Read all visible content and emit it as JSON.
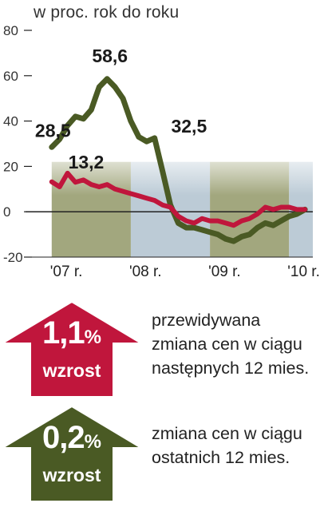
{
  "subtitle": "w proc. rok do roku",
  "colors": {
    "red": "#c0163c",
    "green": "#4a5a24",
    "band_green": "#a2a77e",
    "band_blue": "#bccbd6",
    "axis": "#222222"
  },
  "chart_data": {
    "type": "line",
    "subtitle": "w proc. rok do roku",
    "ylim": [
      -20,
      80
    ],
    "yticks": [
      -20,
      0,
      20,
      40,
      60,
      80
    ],
    "xlim": [
      2006.75,
      2010.3
    ],
    "xticks": [
      {
        "x": 2007.0,
        "label": "'07 r."
      },
      {
        "x": 2008.0,
        "label": "'08 r."
      },
      {
        "x": 2009.0,
        "label": "'09 r."
      },
      {
        "x": 2010.0,
        "label": "'10 r."
      }
    ],
    "bands": [
      {
        "from": 2007.0,
        "to": 2008.0,
        "color": "green"
      },
      {
        "from": 2008.0,
        "to": 2009.0,
        "color": "blue"
      },
      {
        "from": 2009.0,
        "to": 2010.0,
        "color": "green"
      },
      {
        "from": 2010.0,
        "to": 2010.3,
        "color": "blue"
      }
    ],
    "series": [
      {
        "key": "green",
        "x": [
          2007.0,
          2007.1,
          2007.2,
          2007.3,
          2007.4,
          2007.5,
          2007.55,
          2007.6,
          2007.7,
          2007.8,
          2007.9,
          2008.0,
          2008.1,
          2008.2,
          2008.3,
          2008.4,
          2008.5,
          2008.6,
          2008.7,
          2008.8,
          2008.9,
          2009.0,
          2009.1,
          2009.2,
          2009.3,
          2009.4,
          2009.5,
          2009.6,
          2009.7,
          2009.8,
          2009.9,
          2010.0,
          2010.1,
          2010.2
        ],
        "values": [
          28.5,
          32,
          38,
          42,
          41,
          45,
          50,
          55,
          58.6,
          55,
          50,
          40,
          33,
          31,
          32.5,
          18,
          3,
          -5,
          -7,
          -7,
          -8,
          -9,
          -10,
          -12,
          -13,
          -11,
          -10,
          -7,
          -5,
          -6,
          -4,
          -2,
          -1,
          1
        ]
      },
      {
        "key": "red",
        "x": [
          2007.0,
          2007.1,
          2007.2,
          2007.3,
          2007.4,
          2007.5,
          2007.6,
          2007.7,
          2007.8,
          2007.9,
          2008.0,
          2008.1,
          2008.2,
          2008.3,
          2008.4,
          2008.5,
          2008.6,
          2008.7,
          2008.8,
          2008.9,
          2009.0,
          2009.1,
          2009.2,
          2009.3,
          2009.4,
          2009.5,
          2009.6,
          2009.7,
          2009.8,
          2009.9,
          2010.0,
          2010.1,
          2010.2
        ],
        "values": [
          13.2,
          11,
          17,
          13,
          14,
          12,
          11,
          12,
          10,
          9,
          8,
          7,
          6,
          5,
          3,
          2,
          -2,
          -4,
          -5,
          -3,
          -4,
          -4,
          -5,
          -6,
          -4,
          -3,
          -1,
          2,
          1,
          2,
          2,
          1,
          1
        ]
      }
    ],
    "annotations": [
      {
        "text": "28,5",
        "x": 2006.83,
        "y": 33,
        "series": "green"
      },
      {
        "text": "58,6",
        "x": 2007.55,
        "y": 66,
        "series": "green"
      },
      {
        "text": "32,5",
        "x": 2008.55,
        "y": 35,
        "series": "green"
      },
      {
        "text": "13,2",
        "x": 2007.25,
        "y": 19,
        "series": "red"
      }
    ]
  },
  "indicators": [
    {
      "value": "1,1",
      "unit": "%",
      "label": "wzrost",
      "color": "red",
      "text": [
        "przewidywana",
        "zmiana cen w ciągu",
        "następnych 12 mies."
      ]
    },
    {
      "value": "0,2",
      "unit": "%",
      "label": "wzrost",
      "color": "green",
      "text": [
        "zmiana cen w ciągu",
        "ostatnich 12 mies."
      ]
    }
  ]
}
